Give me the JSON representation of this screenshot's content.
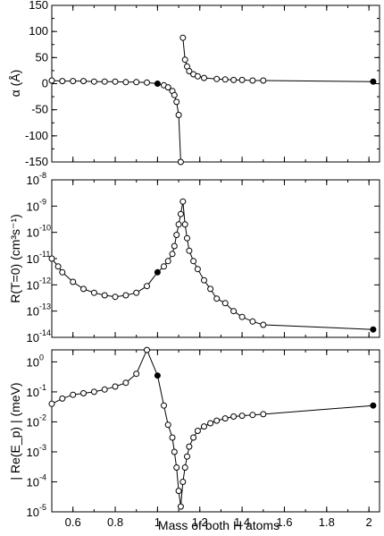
{
  "chart_data": [
    {
      "type": "line",
      "ylabel": "α (Å)",
      "xlim": [
        0.5,
        2.05
      ],
      "ylim": [
        -150,
        150
      ],
      "yticks": [
        "150",
        "100",
        "50",
        "0",
        "-50",
        "-100",
        "-150"
      ],
      "series": [
        {
          "x": [
            0.5,
            0.55,
            0.6,
            0.65,
            0.7,
            0.75,
            0.8,
            0.85,
            0.9,
            0.95,
            1.0,
            1.03,
            1.05,
            1.07,
            1.08,
            1.09,
            1.1,
            1.11
          ],
          "y": [
            6,
            5,
            5,
            5,
            4,
            4,
            4,
            3,
            3,
            2,
            0,
            -3,
            -7,
            -14,
            -22,
            -35,
            -60,
            -150
          ],
          "filled": [
            false,
            false,
            false,
            false,
            false,
            false,
            false,
            false,
            false,
            false,
            true,
            false,
            false,
            false,
            false,
            false,
            false,
            false
          ]
        },
        {
          "x": [
            1.12,
            1.13,
            1.14,
            1.15,
            1.17,
            1.19,
            1.22,
            1.28,
            1.32,
            1.36,
            1.4,
            1.45,
            1.5,
            2.02
          ],
          "y": [
            88,
            46,
            33,
            24,
            18,
            14,
            11,
            9,
            8,
            7,
            7,
            6,
            6,
            4
          ],
          "filled": [
            false,
            false,
            false,
            false,
            false,
            false,
            false,
            false,
            false,
            false,
            false,
            false,
            false,
            true
          ]
        }
      ]
    },
    {
      "type": "line",
      "ylabel": "R(T=0) (cm³s⁻¹)",
      "xlim": [
        0.5,
        2.05
      ],
      "ylog_range": [
        -14,
        -8
      ],
      "yticks": [
        "10",
        "10",
        "10",
        "10",
        "10",
        "10",
        "10"
      ],
      "ytick_exponents": [
        "-8",
        "-9",
        "-10",
        "-11",
        "-12",
        "-13",
        "-14"
      ],
      "series": [
        {
          "x": [
            0.5,
            0.53,
            0.55,
            0.6,
            0.65,
            0.7,
            0.75,
            0.8,
            0.85,
            0.9,
            0.95,
            1.0,
            1.03,
            1.05,
            1.07,
            1.08,
            1.09,
            1.1,
            1.11,
            1.12,
            1.13,
            1.14,
            1.15,
            1.17,
            1.19,
            1.22,
            1.25,
            1.28,
            1.32,
            1.36,
            1.4,
            1.45,
            1.5,
            2.02
          ],
          "y": [
            1e-11,
            5e-12,
            3e-12,
            1.3e-12,
            7e-13,
            5e-13,
            4e-13,
            3.5e-13,
            4e-13,
            5e-13,
            9e-13,
            3e-12,
            5e-12,
            8e-12,
            1.5e-11,
            3e-11,
            8e-11,
            2e-10,
            5e-10,
            1.5e-09,
            2e-10,
            6e-11,
            2e-11,
            8e-12,
            4e-12,
            1.5e-12,
            7e-13,
            3e-13,
            2e-13,
            1e-13,
            6e-14,
            4e-14,
            3e-14,
            2e-14
          ],
          "filled_x": [
            1.0,
            2.02
          ]
        }
      ]
    },
    {
      "type": "line",
      "xlabel": "Mass of both H atoms",
      "ylabel": "| Re(E_p) | (meV)",
      "xlim": [
        0.5,
        2.05
      ],
      "ylog_range": [
        -5,
        0.4
      ],
      "xticks": [
        "0.6",
        "0.8",
        "1",
        "1.2",
        "1.4",
        "1.6",
        "1.8",
        "2"
      ],
      "xtick_values": [
        0.6,
        0.8,
        1.0,
        1.2,
        1.4,
        1.6,
        1.8,
        2.0
      ],
      "yticks": [
        "10",
        "10",
        "10",
        "10",
        "10",
        "10"
      ],
      "ytick_exponents": [
        "0",
        "-1",
        "-2",
        "-3",
        "-4",
        "-5"
      ],
      "series": [
        {
          "x": [
            0.5,
            0.55,
            0.6,
            0.65,
            0.7,
            0.75,
            0.8,
            0.85,
            0.9,
            0.95,
            1.0,
            1.03,
            1.05,
            1.07,
            1.08,
            1.09,
            1.1,
            1.11,
            1.12,
            1.13,
            1.14,
            1.15,
            1.17,
            1.19,
            1.22,
            1.25,
            1.28,
            1.32,
            1.36,
            1.4,
            1.45,
            1.5,
            2.02
          ],
          "y": [
            0.04,
            0.06,
            0.08,
            0.09,
            0.1,
            0.12,
            0.15,
            0.2,
            0.4,
            2.5,
            0.35,
            0.035,
            0.008,
            0.003,
            0.001,
            0.0003,
            5e-05,
            1.5e-05,
            0.0001,
            0.0003,
            0.0007,
            0.0015,
            0.003,
            0.005,
            0.007,
            0.009,
            0.011,
            0.013,
            0.015,
            0.016,
            0.017,
            0.018,
            0.035
          ],
          "filled_x": [
            1.0,
            2.02
          ]
        }
      ]
    }
  ]
}
